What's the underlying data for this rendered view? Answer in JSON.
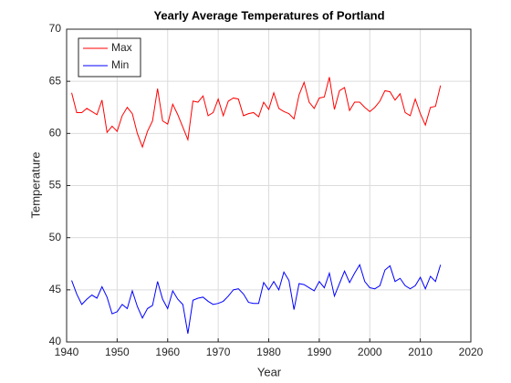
{
  "chart_data": {
    "type": "line",
    "title": "Yearly Average Temperatures of Portland",
    "x_label": "Year",
    "y_label": "Temperature",
    "x": [
      1941,
      1942,
      1943,
      1944,
      1945,
      1946,
      1947,
      1948,
      1949,
      1950,
      1951,
      1952,
      1953,
      1954,
      1955,
      1956,
      1957,
      1958,
      1959,
      1960,
      1961,
      1962,
      1963,
      1964,
      1965,
      1966,
      1967,
      1968,
      1969,
      1970,
      1971,
      1972,
      1973,
      1974,
      1975,
      1976,
      1977,
      1978,
      1979,
      1980,
      1981,
      1982,
      1983,
      1984,
      1985,
      1986,
      1987,
      1988,
      1989,
      1990,
      1991,
      1992,
      1993,
      1994,
      1995,
      1996,
      1997,
      1998,
      1999,
      2000,
      2001,
      2002,
      2003,
      2004,
      2005,
      2006,
      2007,
      2008,
      2009,
      2010,
      2011,
      2012,
      2013,
      2014
    ],
    "series": [
      {
        "name": "Max",
        "color": "#ff0000",
        "values": [
          63.9,
          62.0,
          62.0,
          62.4,
          62.1,
          61.8,
          63.2,
          60.1,
          60.7,
          60.2,
          61.7,
          62.5,
          61.9,
          60.0,
          58.7,
          60.2,
          61.2,
          64.3,
          61.2,
          60.9,
          62.8,
          61.8,
          60.6,
          59.4,
          63.1,
          63.0,
          63.6,
          61.7,
          62.0,
          63.3,
          61.7,
          63.1,
          63.4,
          63.3,
          61.7,
          61.9,
          62.0,
          61.6,
          63.0,
          62.3,
          63.9,
          62.4,
          62.1,
          61.9,
          61.4,
          63.7,
          64.9,
          63.0,
          62.4,
          63.4,
          63.5,
          65.4,
          62.3,
          64.1,
          64.4,
          62.2,
          63.0,
          63.0,
          62.5,
          62.1,
          62.5,
          63.1,
          64.1,
          64.0,
          63.2,
          63.8,
          62.0,
          61.7,
          63.3,
          61.9,
          60.8,
          62.5,
          62.6,
          64.6
        ]
      },
      {
        "name": "Min",
        "color": "#0000ff",
        "values": [
          45.9,
          44.6,
          43.6,
          44.1,
          44.5,
          44.2,
          45.3,
          44.3,
          42.7,
          42.9,
          43.6,
          43.2,
          44.9,
          43.4,
          42.3,
          43.2,
          43.5,
          45.8,
          44.1,
          43.2,
          44.9,
          44.1,
          43.6,
          40.8,
          44.0,
          44.2,
          44.3,
          43.9,
          43.6,
          43.7,
          43.9,
          44.4,
          45.0,
          45.1,
          44.6,
          43.8,
          43.7,
          43.7,
          45.7,
          45.0,
          45.8,
          45.0,
          46.7,
          45.9,
          43.1,
          45.6,
          45.5,
          45.2,
          44.9,
          45.8,
          45.2,
          46.6,
          44.4,
          45.6,
          46.8,
          45.7,
          46.6,
          47.4,
          45.8,
          45.2,
          45.1,
          45.4,
          46.9,
          47.3,
          45.8,
          46.1,
          45.4,
          45.1,
          45.4,
          46.2,
          45.1,
          46.3,
          45.8,
          47.4
        ]
      }
    ],
    "xlim": [
      1940,
      2020
    ],
    "xticks": [
      1940,
      1950,
      1960,
      1970,
      1980,
      1990,
      2000,
      2010,
      2020
    ],
    "ylim": [
      40,
      70
    ],
    "yticks": [
      40,
      45,
      50,
      55,
      60,
      65,
      70
    ],
    "grid": true,
    "legend": "upper-left"
  }
}
